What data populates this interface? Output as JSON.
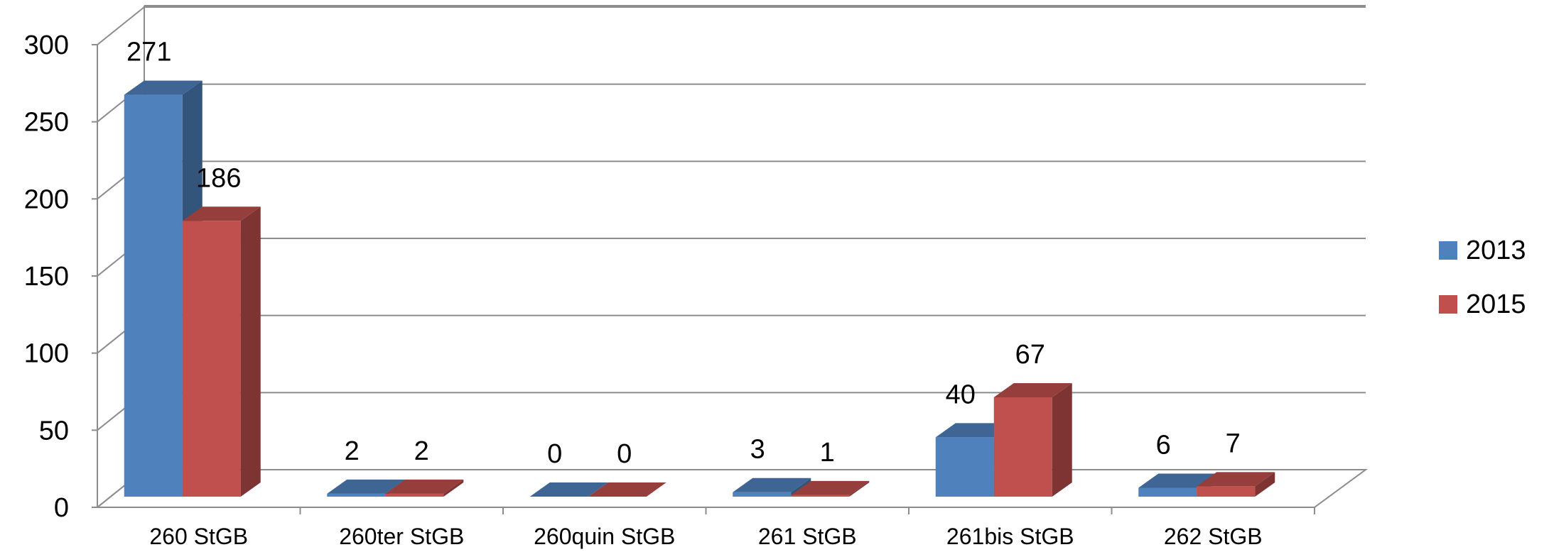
{
  "chart_data": {
    "type": "bar",
    "title": "",
    "xlabel": "",
    "ylabel": "",
    "ylim": [
      0,
      300
    ],
    "yticks": [
      0,
      50,
      100,
      150,
      200,
      250,
      300
    ],
    "categories": [
      "260 StGB",
      "260ter StGB",
      "260quin StGB",
      "261 StGB",
      "261bis StGB",
      "262 StGB"
    ],
    "series": [
      {
        "name": "2013",
        "values": [
          271,
          2,
          0,
          3,
          40,
          6
        ],
        "color": "#4F81BD"
      },
      {
        "name": "2015",
        "values": [
          186,
          2,
          0,
          1,
          67,
          7
        ],
        "color": "#C0504D"
      }
    ],
    "grid": true,
    "legend": "right",
    "style": "3d-clustered-column"
  }
}
